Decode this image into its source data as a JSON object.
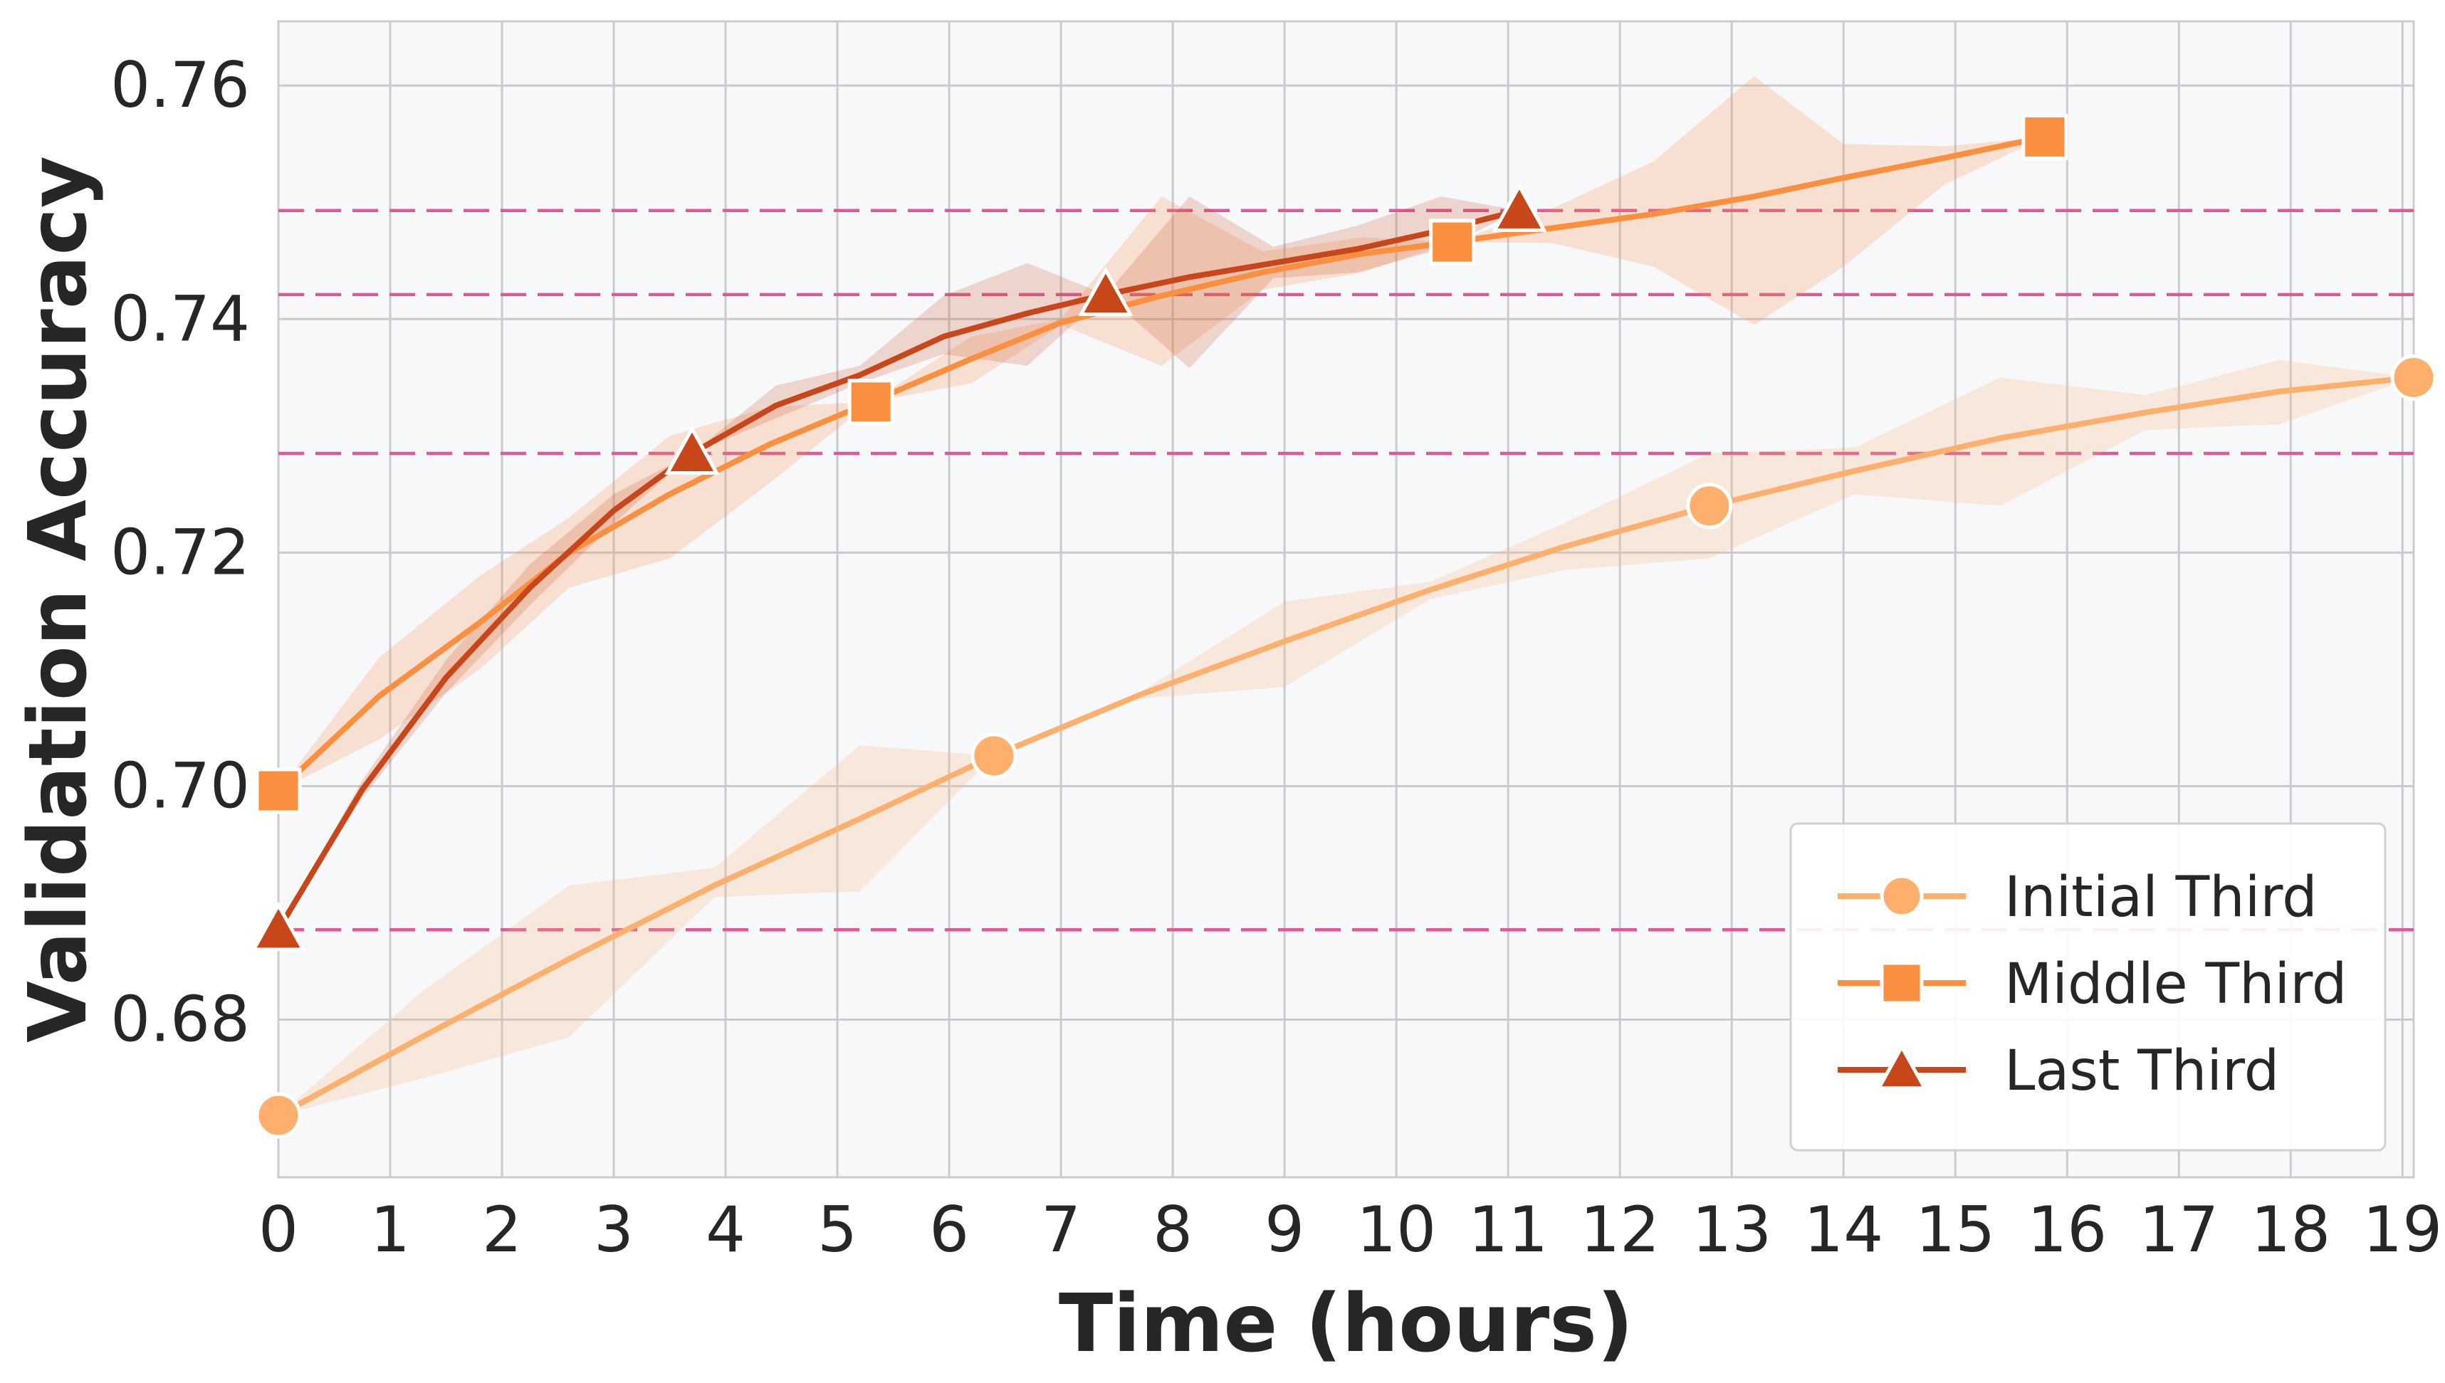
{
  "chart_data": {
    "type": "line",
    "title": "",
    "xlabel": "Time (hours)",
    "ylabel": "Validation Accuracy",
    "xlim": [
      0,
      19.1
    ],
    "ylim": [
      0.6665,
      0.7655
    ],
    "xticks": [
      0,
      1,
      2,
      3,
      4,
      5,
      6,
      7,
      8,
      9,
      10,
      11,
      12,
      13,
      14,
      15,
      16,
      17,
      18,
      19
    ],
    "yticks": [
      0.68,
      0.7,
      0.72,
      0.74,
      0.76
    ],
    "ytick_labels": [
      "0.68",
      "0.70",
      "0.72",
      "0.74",
      "0.76"
    ],
    "grid": true,
    "legend_position": "bottom-right",
    "reference_lines": [
      0.6877,
      0.7285,
      0.7421,
      0.7493
    ],
    "reference_line_color": "#dd5a96",
    "series": [
      {
        "name": "Initial Third",
        "color": "#fdb06e",
        "marker": "circle",
        "x": [
          0,
          1.3,
          2.6,
          3.9,
          5.2,
          6.4,
          7.7,
          9.0,
          10.3,
          11.5,
          12.8,
          14.1,
          15.4,
          16.7,
          17.9,
          19.1
        ],
        "y": [
          0.6718,
          0.6786,
          0.6852,
          0.6915,
          0.6972,
          0.7026,
          0.7078,
          0.7124,
          0.7168,
          0.7205,
          0.724,
          0.727,
          0.7298,
          0.732,
          0.7338,
          0.735
        ],
        "lower": [
          0.6718,
          0.675,
          0.6785,
          0.6905,
          0.691,
          0.7026,
          0.7075,
          0.7085,
          0.716,
          0.7185,
          0.7195,
          0.725,
          0.724,
          0.7305,
          0.731,
          0.735
        ],
        "upper": [
          0.6718,
          0.6825,
          0.6915,
          0.693,
          0.7035,
          0.7026,
          0.708,
          0.7158,
          0.7175,
          0.7225,
          0.7285,
          0.729,
          0.735,
          0.7335,
          0.7365,
          0.735
        ],
        "markers_x": [
          0,
          6.4,
          12.8,
          19.1
        ],
        "markers_y": [
          0.6718,
          0.7026,
          0.724,
          0.735
        ]
      },
      {
        "name": "Middle Third",
        "color": "#f98f3f",
        "marker": "square",
        "x": [
          0,
          0.9,
          1.8,
          2.6,
          3.5,
          4.4,
          5.3,
          6.2,
          7.0,
          7.9,
          8.8,
          9.7,
          10.5,
          11.4,
          12.3,
          13.2,
          14.0,
          14.9,
          15.8
        ],
        "y": [
          0.6996,
          0.7077,
          0.714,
          0.72,
          0.725,
          0.7293,
          0.7329,
          0.7366,
          0.7397,
          0.742,
          0.744,
          0.7456,
          0.7466,
          0.7478,
          0.749,
          0.7505,
          0.7521,
          0.7538,
          0.7556
        ],
        "lower": [
          0.6996,
          0.704,
          0.71,
          0.717,
          0.7195,
          0.726,
          0.7329,
          0.7345,
          0.7395,
          0.736,
          0.7425,
          0.744,
          0.7466,
          0.7465,
          0.7445,
          0.7395,
          0.7445,
          0.7515,
          0.7556
        ],
        "upper": [
          0.6996,
          0.711,
          0.718,
          0.723,
          0.73,
          0.7325,
          0.7329,
          0.7385,
          0.74,
          0.7505,
          0.7458,
          0.747,
          0.7466,
          0.7495,
          0.7535,
          0.7608,
          0.755,
          0.7548,
          0.7556
        ],
        "markers_x": [
          0,
          5.3,
          10.5,
          15.8
        ],
        "markers_y": [
          0.6996,
          0.7329,
          0.7466,
          0.7556
        ]
      },
      {
        "name": "Last Third",
        "color": "#c8471a",
        "marker": "triangle",
        "x": [
          0,
          0.75,
          1.5,
          2.25,
          3.0,
          3.7,
          4.45,
          5.2,
          5.95,
          6.7,
          7.4,
          8.15,
          8.9,
          9.65,
          10.4,
          11.1
        ],
        "y": [
          0.6877,
          0.6997,
          0.7093,
          0.717,
          0.7236,
          0.7285,
          0.7326,
          0.7352,
          0.7385,
          0.7405,
          0.7421,
          0.7436,
          0.7448,
          0.746,
          0.7476,
          0.7493
        ],
        "lower": [
          0.6877,
          0.699,
          0.708,
          0.7155,
          0.7225,
          0.7285,
          0.7315,
          0.7345,
          0.737,
          0.736,
          0.7421,
          0.7358,
          0.7435,
          0.744,
          0.746,
          0.7493
        ],
        "upper": [
          0.6877,
          0.7005,
          0.7108,
          0.719,
          0.725,
          0.7285,
          0.7343,
          0.736,
          0.742,
          0.7448,
          0.7421,
          0.7505,
          0.7462,
          0.748,
          0.7505,
          0.7493
        ],
        "markers_x": [
          0,
          3.7,
          7.4,
          11.1
        ],
        "markers_y": [
          0.6877,
          0.7285,
          0.7421,
          0.7493
        ]
      }
    ]
  }
}
